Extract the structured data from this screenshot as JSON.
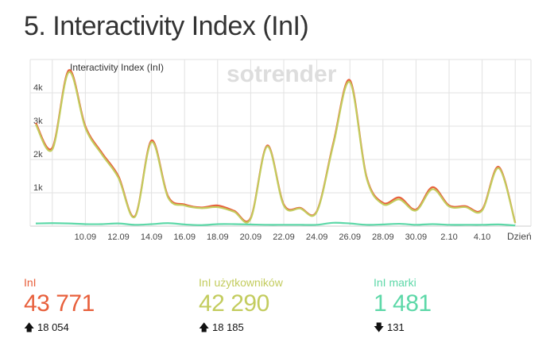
{
  "title": "5. Interactivity Index (InI)",
  "watermark": "sotrender",
  "chart_data": {
    "type": "line",
    "title": "Interactivity Index (InI)",
    "xlabel": "Dzień",
    "ylabel": "",
    "ylim": [
      0,
      5000
    ],
    "grid": true,
    "x": [
      "7.09",
      "8.09",
      "9.09",
      "10.09",
      "11.09",
      "12.09",
      "13.09",
      "14.09",
      "15.09",
      "16.09",
      "17.09",
      "18.09",
      "19.09",
      "20.09",
      "21.09",
      "22.09",
      "23.09",
      "24.09",
      "25.09",
      "26.09",
      "27.09",
      "28.09",
      "29.09",
      "30.09",
      "1.10",
      "2.10",
      "3.10",
      "4.10",
      "5.10",
      "6.10"
    ],
    "xticks": [
      "10.09",
      "12.09",
      "14.09",
      "16.09",
      "18.09",
      "20.09",
      "22.09",
      "24.09",
      "26.09",
      "28.09",
      "30.09",
      "2.10",
      "4.10"
    ],
    "yticks": [
      {
        "v": 1000,
        "label": "1k"
      },
      {
        "v": 2000,
        "label": "2k"
      },
      {
        "v": 3000,
        "label": "3k"
      },
      {
        "v": 4000,
        "label": "4k"
      }
    ],
    "series": [
      {
        "name": "InI",
        "color": "#e8603c",
        "values": [
          3100,
          2350,
          4680,
          3000,
          2200,
          1500,
          300,
          2570,
          900,
          650,
          560,
          620,
          460,
          250,
          2420,
          650,
          550,
          450,
          2500,
          4380,
          1500,
          700,
          860,
          500,
          1170,
          620,
          600,
          500,
          1780,
          100
        ]
      },
      {
        "name": "InI użytkowników",
        "color": "#c3cc5e",
        "values": [
          3050,
          2300,
          4620,
          2950,
          2150,
          1450,
          280,
          2520,
          860,
          620,
          540,
          570,
          430,
          220,
          2390,
          620,
          530,
          430,
          2450,
          4320,
          1460,
          660,
          800,
          470,
          1110,
          590,
          570,
          470,
          1740,
          90
        ]
      },
      {
        "name": "InI marki",
        "color": "#5dd8a8",
        "values": [
          80,
          90,
          80,
          60,
          60,
          80,
          40,
          60,
          90,
          50,
          30,
          60,
          60,
          50,
          40,
          40,
          40,
          40,
          100,
          80,
          40,
          50,
          70,
          40,
          60,
          40,
          40,
          40,
          50,
          20
        ]
      }
    ]
  },
  "stats": [
    {
      "label": "InI",
      "value": "43 771",
      "change": "18 054",
      "direction": "up",
      "color": "#e8603c"
    },
    {
      "label": "InI użytkowników",
      "value": "42 290",
      "change": "18 185",
      "direction": "up",
      "color": "#c3cc5e"
    },
    {
      "label": "InI marki",
      "value": "1 481",
      "change": "131",
      "direction": "down",
      "color": "#5dd8a8"
    }
  ]
}
